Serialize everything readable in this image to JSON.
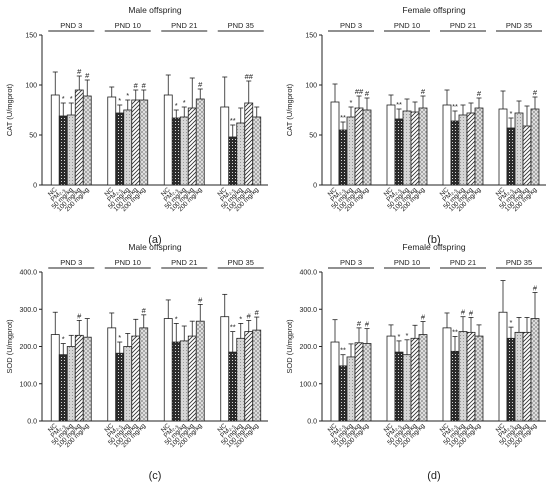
{
  "treatments": [
    "NC",
    "PM₂.₅",
    "50 mg/kg",
    "100 mg/kg",
    "200 mg/kg"
  ],
  "groups": [
    "PND 3",
    "PND 10",
    "PND 21",
    "PND 35"
  ],
  "fills": [
    "white",
    "cross-dark",
    "dot-light",
    "hatch",
    "grid"
  ],
  "chart_data": [
    {
      "panel": "(a)",
      "type": "bar",
      "title": "Male offspring",
      "ylabel": "CAT (U/mgprot)",
      "ylim": [
        0,
        150
      ],
      "yticks": [
        "0",
        "50",
        "100",
        "150"
      ],
      "series": [
        {
          "group": "PND 3",
          "values": [
            90,
            69,
            70,
            95,
            89
          ],
          "errors": [
            23,
            13,
            12,
            14,
            16
          ],
          "marks": [
            "",
            "*",
            "*",
            "#",
            "#"
          ]
        },
        {
          "group": "PND 10",
          "values": [
            88,
            72,
            75,
            85,
            85
          ],
          "errors": [
            10,
            8,
            10,
            10,
            10
          ],
          "marks": [
            "",
            "*",
            "*",
            "#",
            "#"
          ]
        },
        {
          "group": "PND 21",
          "values": [
            90,
            67,
            68,
            77,
            86
          ],
          "errors": [
            20,
            8,
            10,
            30,
            10
          ],
          "marks": [
            "",
            "*",
            "*",
            "",
            "#"
          ]
        },
        {
          "group": "PND 35",
          "values": [
            78,
            48,
            62,
            82,
            68
          ],
          "errors": [
            30,
            12,
            15,
            22,
            10
          ],
          "marks": [
            "",
            "**",
            "",
            "##",
            ""
          ]
        }
      ]
    },
    {
      "panel": "(b)",
      "type": "bar",
      "title": "Female offspring",
      "ylabel": "CAT (U/mgprot)",
      "ylim": [
        0,
        150
      ],
      "yticks": [
        "0",
        "50",
        "100",
        "150"
      ],
      "series": [
        {
          "group": "PND 3",
          "values": [
            83,
            55,
            68,
            77,
            75
          ],
          "errors": [
            18,
            8,
            10,
            12,
            12
          ],
          "marks": [
            "",
            "**",
            "*",
            "##",
            "#"
          ]
        },
        {
          "group": "PND 10",
          "values": [
            80,
            66,
            74,
            73,
            77
          ],
          "errors": [
            10,
            10,
            12,
            10,
            12
          ],
          "marks": [
            "",
            "**",
            "",
            "",
            "#"
          ]
        },
        {
          "group": "PND 21",
          "values": [
            80,
            64,
            70,
            72,
            77
          ],
          "errors": [
            15,
            10,
            10,
            10,
            10
          ],
          "marks": [
            "",
            "**",
            "",
            "",
            "#"
          ]
        },
        {
          "group": "PND 35",
          "values": [
            76,
            57,
            72,
            59,
            76
          ],
          "errors": [
            18,
            10,
            12,
            20,
            12
          ],
          "marks": [
            "",
            "*",
            "",
            "",
            "#"
          ]
        }
      ]
    },
    {
      "panel": "(c)",
      "type": "bar",
      "title": "Male offspring",
      "ylabel": "SOD (U/mgprot)",
      "ylim": [
        0,
        400
      ],
      "yticks": [
        "0.0",
        "100.0",
        "200.0",
        "300.0",
        "400.0"
      ],
      "series": [
        {
          "group": "PND 3",
          "values": [
            232,
            178,
            200,
            230,
            225
          ],
          "errors": [
            60,
            30,
            30,
            40,
            50
          ],
          "marks": [
            "",
            "*",
            "",
            "#",
            ""
          ]
        },
        {
          "group": "PND 10",
          "values": [
            250,
            182,
            200,
            228,
            250
          ],
          "errors": [
            40,
            30,
            35,
            45,
            35
          ],
          "marks": [
            "",
            "*",
            "",
            "",
            "#"
          ]
        },
        {
          "group": "PND 21",
          "values": [
            275,
            212,
            215,
            228,
            268
          ],
          "errors": [
            50,
            50,
            40,
            40,
            45
          ],
          "marks": [
            "",
            "*",
            "",
            "",
            "#"
          ]
        },
        {
          "group": "PND 35",
          "values": [
            280,
            185,
            222,
            240,
            244
          ],
          "errors": [
            60,
            55,
            40,
            30,
            35
          ],
          "marks": [
            "",
            "**",
            "*",
            "#",
            "#"
          ]
        }
      ]
    },
    {
      "panel": "(d)",
      "type": "bar",
      "title": "Female offspring",
      "ylabel": "SOD (U/mgprot)",
      "ylim": [
        0,
        400
      ],
      "yticks": [
        "0.0",
        "100.0",
        "200.0",
        "300.0",
        "400.0"
      ],
      "series": [
        {
          "group": "PND 3",
          "values": [
            212,
            148,
            172,
            210,
            208
          ],
          "errors": [
            60,
            30,
            35,
            40,
            40
          ],
          "marks": [
            "",
            "**",
            "",
            "#",
            "#"
          ]
        },
        {
          "group": "PND 10",
          "values": [
            228,
            185,
            178,
            222,
            232
          ],
          "errors": [
            30,
            30,
            40,
            35,
            35
          ],
          "marks": [
            "",
            "*",
            "*",
            "",
            "#"
          ]
        },
        {
          "group": "PND 21",
          "values": [
            250,
            187,
            240,
            238,
            228
          ],
          "errors": [
            40,
            40,
            40,
            40,
            30
          ],
          "marks": [
            "",
            "**",
            "#",
            "#",
            ""
          ]
        },
        {
          "group": "PND 35",
          "values": [
            292,
            222,
            238,
            238,
            275
          ],
          "errors": [
            85,
            30,
            40,
            40,
            70
          ],
          "marks": [
            "",
            "*",
            "",
            "",
            "#"
          ]
        }
      ]
    }
  ]
}
